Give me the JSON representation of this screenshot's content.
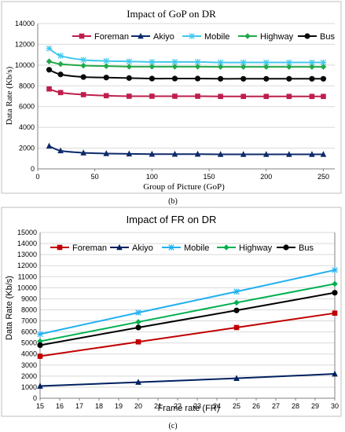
{
  "chart_data": [
    {
      "type": "line",
      "title": "Impact of GoP on DR",
      "xlabel": "Group of Picture (GoP)",
      "ylabel": "Data Rate (Kb/s)",
      "xlim": [
        0,
        260
      ],
      "ylim": [
        0,
        14000
      ],
      "xticks": [
        0,
        50,
        100,
        150,
        200,
        250
      ],
      "yticks": [
        0,
        2000,
        4000,
        6000,
        8000,
        10000,
        12000,
        14000
      ],
      "grid": "horizontal",
      "legend": "top",
      "caption": "(b)",
      "x": [
        10,
        20,
        40,
        60,
        80,
        100,
        120,
        140,
        160,
        180,
        200,
        220,
        240,
        250
      ],
      "series": [
        {
          "name": "Foreman",
          "color": "#be1e4c",
          "marker": "square",
          "values": [
            7700,
            7350,
            7150,
            7050,
            7000,
            7000,
            7000,
            7000,
            6980,
            6980,
            6980,
            6980,
            6980,
            6980
          ]
        },
        {
          "name": "Akiyo",
          "color": "#0d2a6b",
          "marker": "triangle",
          "values": [
            2200,
            1750,
            1550,
            1480,
            1450,
            1420,
            1420,
            1420,
            1400,
            1400,
            1400,
            1400,
            1400,
            1400
          ]
        },
        {
          "name": "Mobile",
          "color": "#40c8ee",
          "marker": "star",
          "values": [
            11600,
            10900,
            10500,
            10400,
            10350,
            10300,
            10300,
            10300,
            10250,
            10250,
            10250,
            10250,
            10250,
            10250
          ]
        },
        {
          "name": "Highway",
          "color": "#23a84a",
          "marker": "diamond",
          "values": [
            10350,
            10100,
            9950,
            9900,
            9850,
            9850,
            9850,
            9850,
            9830,
            9830,
            9830,
            9830,
            9830,
            9830
          ]
        },
        {
          "name": "Bus",
          "color": "#0a0a0a",
          "marker": "circle",
          "values": [
            9550,
            9100,
            8850,
            8800,
            8750,
            8700,
            8700,
            8700,
            8680,
            8680,
            8680,
            8680,
            8680,
            8680
          ]
        }
      ]
    },
    {
      "type": "line",
      "title": "Impact of FR on DR",
      "xlabel": "Frame rate (FR)",
      "ylabel": "Data Rate (Kb/s)",
      "xlim": [
        15,
        30
      ],
      "ylim": [
        0,
        15000
      ],
      "xticks": [
        15,
        16,
        17,
        18,
        19,
        20,
        21,
        22,
        23,
        24,
        25,
        26,
        27,
        28,
        29,
        30
      ],
      "yticks": [
        0,
        1000,
        2000,
        3000,
        4000,
        5000,
        6000,
        7000,
        8000,
        9000,
        10000,
        11000,
        12000,
        13000,
        14000,
        15000
      ],
      "grid": "horizontal",
      "legend": "top",
      "caption": "(c)",
      "x": [
        15,
        20,
        25,
        30
      ],
      "series": [
        {
          "name": "Foreman",
          "color": "#c00000",
          "marker": "square",
          "values": [
            3800,
            5100,
            6400,
            7700
          ]
        },
        {
          "name": "Akiyo",
          "color": "#002060",
          "marker": "triangle",
          "values": [
            1100,
            1450,
            1800,
            2200
          ]
        },
        {
          "name": "Mobile",
          "color": "#20b0f0",
          "marker": "star",
          "values": [
            5800,
            7750,
            9650,
            11600
          ]
        },
        {
          "name": "Highway",
          "color": "#00b050",
          "marker": "diamond",
          "values": [
            5150,
            6900,
            8650,
            10350
          ]
        },
        {
          "name": "Bus",
          "color": "#000000",
          "marker": "circle",
          "values": [
            4800,
            6400,
            7950,
            9550
          ]
        }
      ]
    }
  ]
}
